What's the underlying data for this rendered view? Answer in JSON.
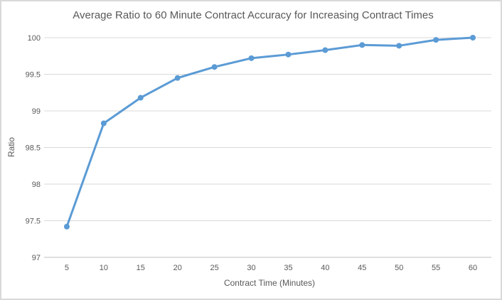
{
  "window": {
    "background_color": "#ffffff",
    "border_color": "#d9d9d9"
  },
  "chart_data": {
    "type": "line",
    "title": "Average Ratio to 60 Minute Contract Accuracy for Increasing Contract Times",
    "xlabel": "Contract Time (Minutes)",
    "ylabel": "Ratio",
    "categories": [
      5,
      10,
      15,
      20,
      25,
      30,
      35,
      40,
      45,
      50,
      55,
      60
    ],
    "x_tick_labels": [
      "5",
      "10",
      "15",
      "20",
      "25",
      "30",
      "35",
      "40",
      "45",
      "50",
      "55",
      "60"
    ],
    "values": [
      97.42,
      98.83,
      99.18,
      99.45,
      99.6,
      99.72,
      99.77,
      99.83,
      99.9,
      99.89,
      99.97,
      100
    ],
    "ylim": [
      97,
      100
    ],
    "y_ticks": [
      97,
      97.5,
      98,
      98.5,
      99,
      99.5,
      100
    ],
    "y_tick_labels": [
      "97",
      "97.5",
      "98",
      "98.5",
      "99",
      "99.5",
      "100"
    ],
    "grid": true,
    "legend": "none",
    "line_color": "#5b9bd5",
    "marker_color": "#5b9bd5",
    "gridline_color": "#d9d9d9",
    "axis_line_color": "#bfbfbf",
    "text_color": "#595959"
  }
}
